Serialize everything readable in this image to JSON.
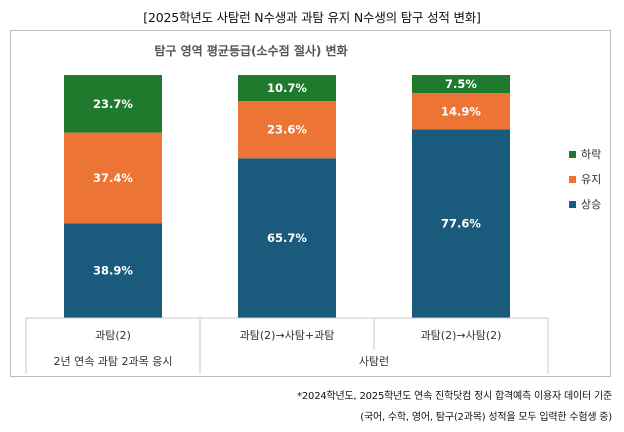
{
  "page_title": "[2025학년도 사탐런 N수생과 과탐 유지 N수생의 탐구 성적 변화]",
  "footnotes": [
    "*2024학년도, 2025학년도 연속 진학닷컴 정시 합격예측 이용자 데이터 기준",
    "(국어, 수학, 영어, 탐구(2과목) 성적을 모두 입력한 수험생 중)"
  ],
  "chart_data": {
    "type": "bar",
    "stacked": true,
    "percent_stacked": true,
    "title": "탐구 영역 평균등급(소수점 절사) 변화",
    "categories": [
      "과탐(2)",
      "과탐(2)→사탐+과탐",
      "과탐(2)→사탐(2)"
    ],
    "groups": [
      {
        "label": "2년 연속 과탐 2과목 응시",
        "categories": [
          "과탐(2)"
        ]
      },
      {
        "label": "사탐런",
        "categories": [
          "과탐(2)→사탐+과탐",
          "과탐(2)→사탐(2)"
        ]
      }
    ],
    "series": [
      {
        "name": "상승",
        "color": "#1a5b7d",
        "values": [
          38.9,
          65.7,
          77.6
        ],
        "labels": [
          "38.9%",
          "65.7%",
          "77.6%"
        ]
      },
      {
        "name": "유지",
        "color": "#ec7535",
        "values": [
          37.4,
          23.6,
          14.9
        ],
        "labels": [
          "37.4%",
          "23.6%",
          "14.9%"
        ]
      },
      {
        "name": "하락",
        "color": "#1f7a2e",
        "values": [
          23.7,
          10.7,
          7.5
        ],
        "labels": [
          "23.7%",
          "10.7%",
          "7.5%"
        ]
      }
    ],
    "legend": {
      "position": "right",
      "order": [
        "하락",
        "유지",
        "상승"
      ]
    },
    "ylim": [
      0,
      100
    ],
    "grid": false
  }
}
